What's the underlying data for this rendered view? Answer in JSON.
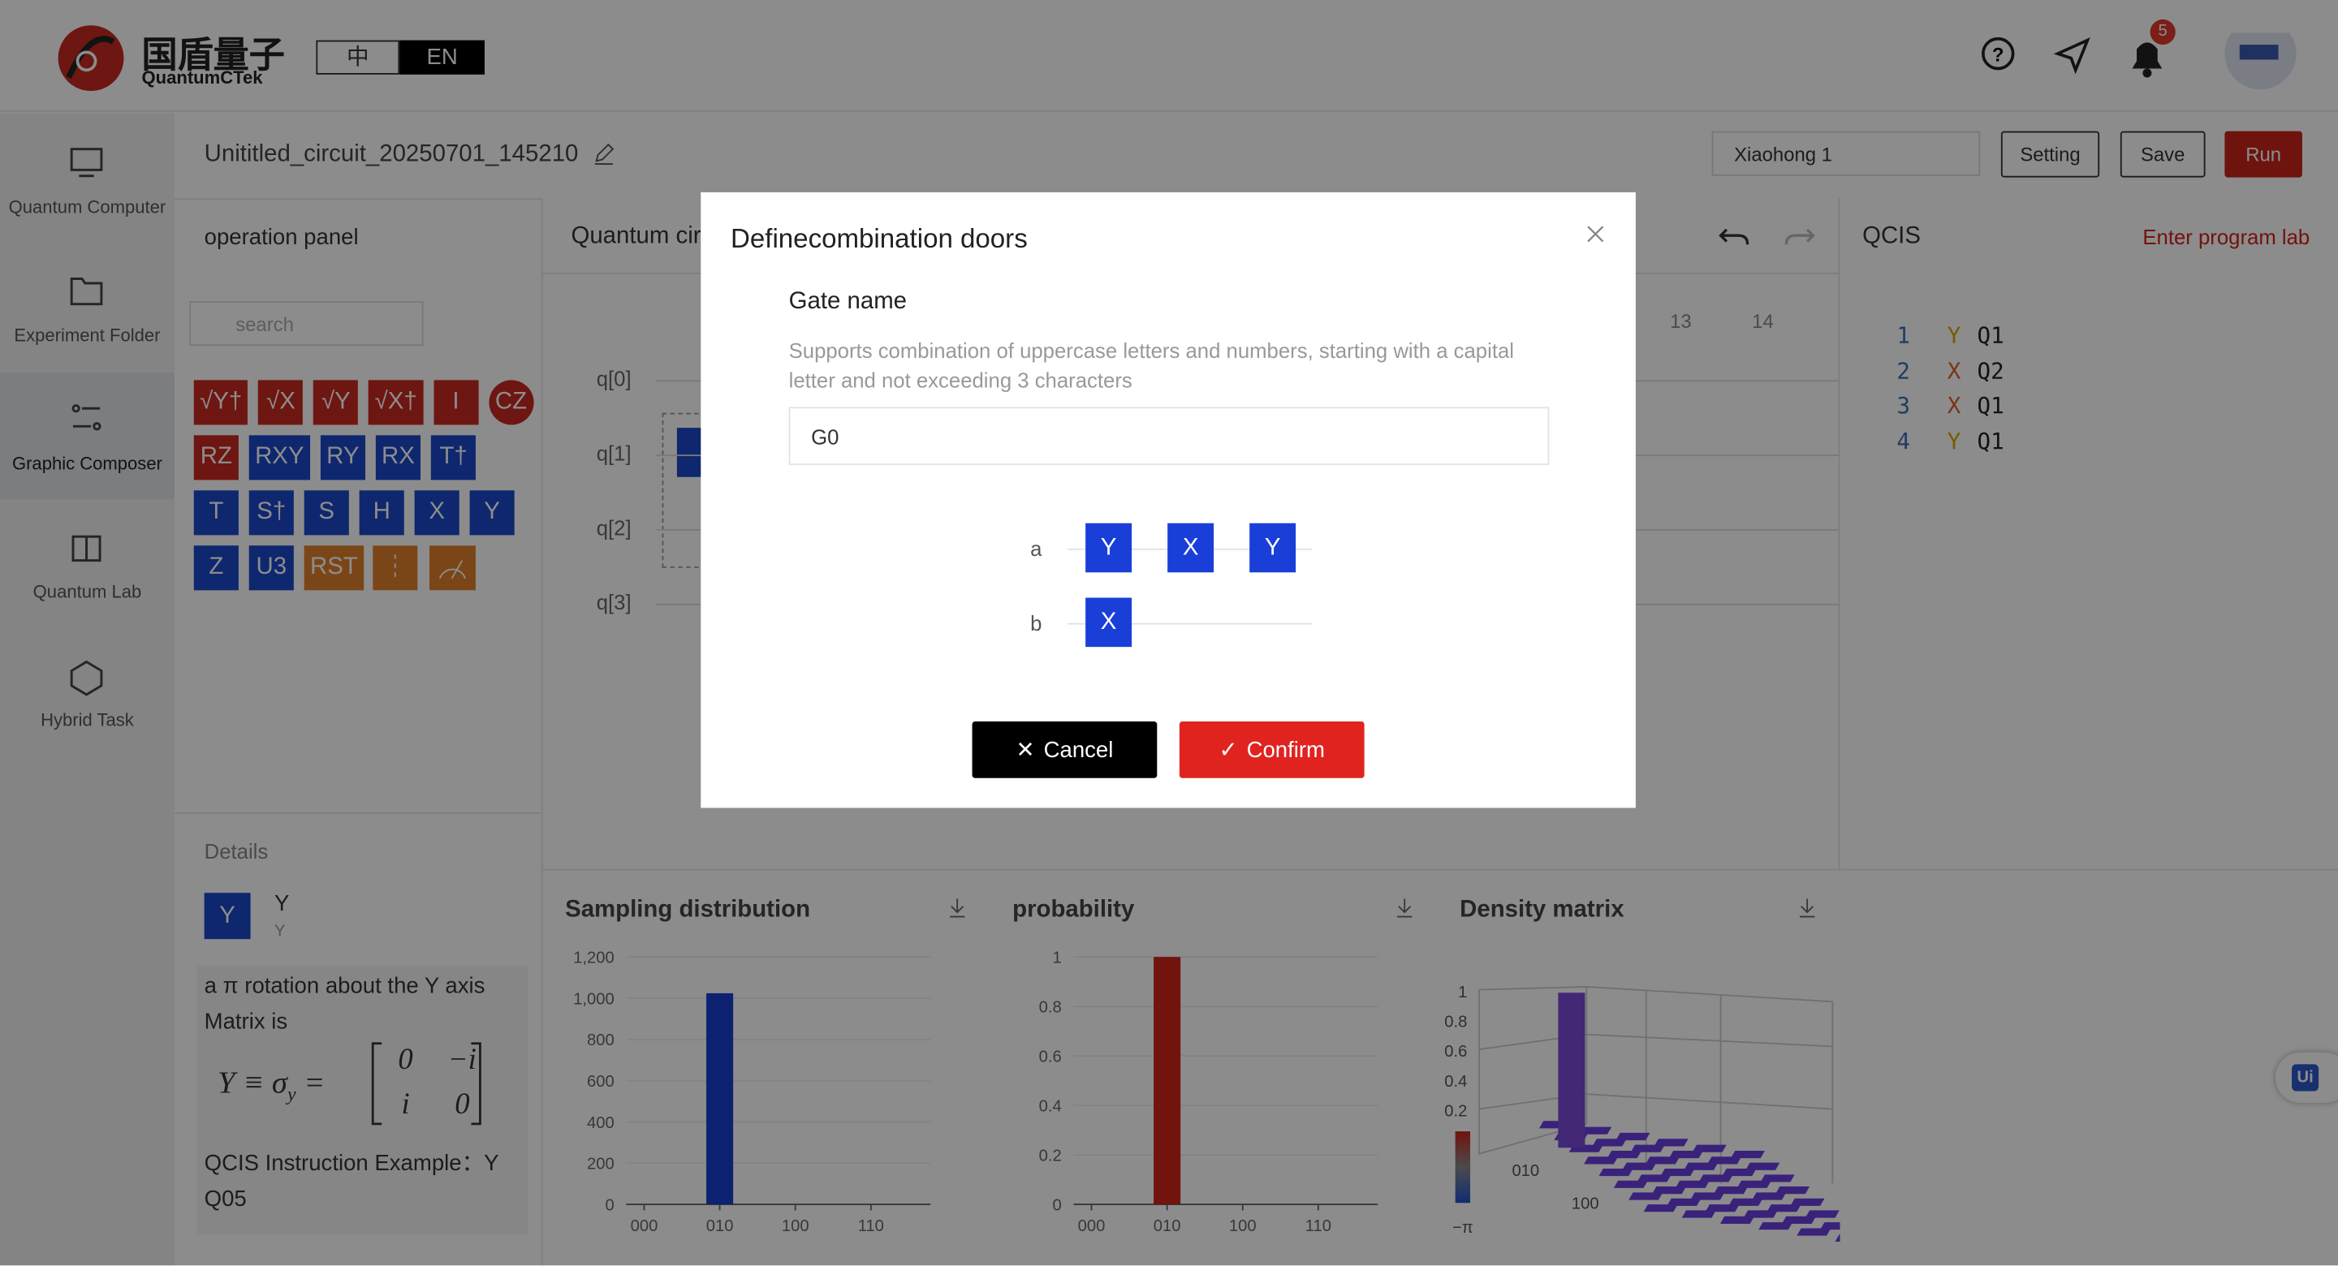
{
  "header": {
    "logo_cn": "国盾量子",
    "logo_en": "QuantumCTek",
    "languages": [
      "中",
      "EN"
    ],
    "notification_count": 5
  },
  "sidebar": [
    "Quantum Computer",
    "Experiment Folder",
    "Graphic Composer",
    "Quantum Lab",
    "Hybrid Task"
  ],
  "toolbar": {
    "circuit_name": "Unititled_circuit_20250701_145210",
    "computer": "Xiaohong 1",
    "buttons": [
      "Setting",
      "Save",
      "Run"
    ]
  },
  "operation_panel": {
    "title": "operation panel",
    "search_placeholder": "search",
    "gates": [
      [
        {
          "label": "√Y†",
          "color": "#c8291f"
        },
        {
          "label": "√X",
          "color": "#c8291f"
        },
        {
          "label": "√Y",
          "color": "#c8291f"
        },
        {
          "label": "√X†",
          "color": "#c8291f"
        },
        {
          "label": "I",
          "color": "#c8291f"
        },
        {
          "label": "CZ",
          "color": "#c8291f"
        }
      ],
      [
        {
          "label": "RZ",
          "color": "#c8291f"
        },
        {
          "label": "RXY",
          "color": "#1a47c8"
        },
        {
          "label": "RY",
          "color": "#1a47c8"
        },
        {
          "label": "RX",
          "color": "#1a47c8"
        },
        {
          "label": "T†",
          "color": "#1a47c8"
        }
      ],
      [
        {
          "label": "T",
          "color": "#1a47c8"
        },
        {
          "label": "S†",
          "color": "#1a47c8"
        },
        {
          "label": "S",
          "color": "#1a47c8"
        },
        {
          "label": "H",
          "color": "#1a47c8"
        },
        {
          "label": "X",
          "color": "#1a47c8"
        },
        {
          "label": "Y",
          "color": "#1a47c8"
        }
      ],
      [
        {
          "label": "Z",
          "color": "#1a47c8"
        },
        {
          "label": "U3",
          "color": "#1a47c8"
        },
        {
          "label": "RST",
          "color": "#e0802b"
        }
      ]
    ]
  },
  "details": {
    "title": "Details",
    "gate": "Y",
    "name": "Y",
    "subname": "Y",
    "description": "a π rotation about the Y axis",
    "matrix_intro": "Matrix is",
    "formula": [
      "Y ≡ σ",
      "y",
      "="
    ],
    "matrix": [
      [
        "0",
        "−i"
      ],
      [
        "i",
        "0"
      ]
    ],
    "example": "QCIS Instruction Example：Y Q05"
  },
  "circuit": {
    "title": "Quantum circuit",
    "columns": [
      "13",
      "14"
    ],
    "qubits": [
      "q[0]",
      "q[1]",
      "q[2]",
      "q[3]"
    ]
  },
  "qcis": {
    "title": "QCIS",
    "link": "Enter program lab",
    "lines": [
      {
        "number": 1,
        "gate": "Y",
        "qubit": "Q1"
      },
      {
        "number": 2,
        "gate": "X",
        "qubit": "Q2"
      },
      {
        "number": 3,
        "gate": "X",
        "qubit": "Q1"
      },
      {
        "number": 4,
        "gate": "Y",
        "qubit": "Q1"
      }
    ]
  },
  "results": {
    "sampling": {
      "type": "bar",
      "title": "Sampling distribution",
      "categories": [
        "000",
        "010",
        "100",
        "110"
      ],
      "values": [
        0,
        1024,
        0,
        0
      ],
      "color": "#1a3fd0",
      "ylim": [
        0,
        1200
      ],
      "yticks": [
        0,
        200,
        400,
        600,
        800,
        {
          "value": 1000,
          "label": "1,000"
        },
        {
          "value": 1200,
          "label": "1,200"
        }
      ]
    },
    "probability": {
      "type": "bar",
      "title": "probability",
      "categories": [
        "000",
        "010",
        "100",
        "110"
      ],
      "values": [
        0,
        1,
        0,
        0
      ],
      "color": "#d0231b",
      "ylim": [
        0,
        1
      ],
      "yticks": [
        0,
        0.2,
        0.4,
        0.6,
        0.8,
        1
      ]
    },
    "density": {
      "title": "Density matrix",
      "zticks": [
        1,
        0.8,
        0.6,
        0.4,
        0.2
      ],
      "labels": [
        "010",
        "100"
      ],
      "phase": "−π"
    }
  },
  "modal": {
    "title": "Definecombination doors",
    "field": "Gate name",
    "hint": "Supports combination of uppercase letters and numbers, starting with a capital letter and not exceeding 3 characters",
    "value": "G0",
    "wires": [
      {
        "name": "a",
        "gates": [
          "Y",
          "X",
          "Y"
        ]
      },
      {
        "name": "b",
        "gates": [
          "X"
        ]
      }
    ],
    "buttons": [
      "Cancel",
      "Confirm"
    ]
  }
}
